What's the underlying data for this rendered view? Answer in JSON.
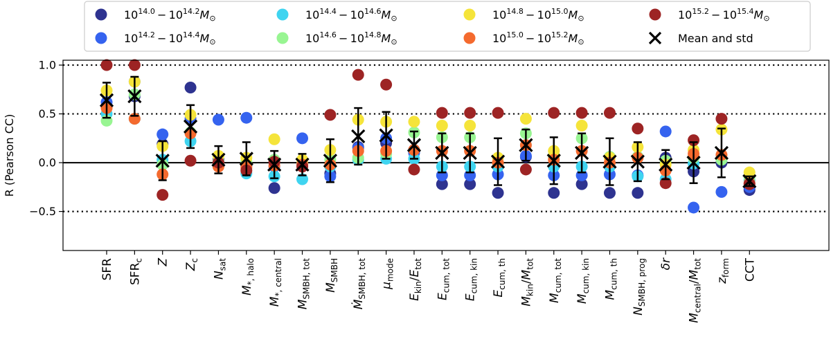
{
  "chart_data": {
    "type": "scatter",
    "ylabel": "R (Pearson CC)",
    "ylim": [
      -0.9,
      1.05
    ],
    "yticks": [
      "−0.5",
      "0.0",
      "0.5",
      "1.0"
    ],
    "ytick_values": [
      -0.5,
      0.0,
      0.5,
      1.0
    ],
    "reference_lines": {
      "dotted": [
        -0.5,
        0.5,
        1.0
      ],
      "solid": [
        0.0
      ]
    },
    "categories": [
      {
        "id": "SFR",
        "base": "SFR",
        "sub": ""
      },
      {
        "id": "SFR_c",
        "base": "SFR",
        "sub": "c"
      },
      {
        "id": "Z",
        "base": "Z",
        "sub": ""
      },
      {
        "id": "Z_c",
        "base": "Z",
        "sub": "c"
      },
      {
        "id": "N_sat",
        "base": "N",
        "sub": "sat"
      },
      {
        "id": "M_star_halo",
        "base": "M",
        "sub": "*, halo"
      },
      {
        "id": "M_star_central",
        "base": "M",
        "sub": "*, central"
      },
      {
        "id": "M_SMBH_tot",
        "base": "M",
        "sub": "SMBH, tot"
      },
      {
        "id": "M_SMBH",
        "base": "M",
        "sub": "SMBH"
      },
      {
        "id": "Mdot_SMBH_tot",
        "base": "Ṁ",
        "sub": "SMBH, tot"
      },
      {
        "id": "mu_mode",
        "base": "μ",
        "sub": "mode"
      },
      {
        "id": "E_kin_E_tot",
        "base": "E",
        "sub": "kin",
        "frac": {
          "base": "E",
          "sub": "tot"
        }
      },
      {
        "id": "E_cum_tot",
        "base": "E",
        "sub": "cum, tot"
      },
      {
        "id": "E_cum_kin",
        "base": "E",
        "sub": "cum, kin"
      },
      {
        "id": "E_cum_th",
        "base": "E",
        "sub": "cum, th"
      },
      {
        "id": "M_kin_M_tot",
        "base": "M",
        "sub": "kin",
        "frac": {
          "base": "M",
          "sub": "tot"
        }
      },
      {
        "id": "M_cum_tot",
        "base": "M",
        "sub": "cum, tot"
      },
      {
        "id": "M_cum_kin",
        "base": "M",
        "sub": "cum, kin"
      },
      {
        "id": "M_cum_th",
        "base": "M",
        "sub": "cum, th"
      },
      {
        "id": "N_SMBH_prog",
        "base": "N",
        "sub": "SMBH, prog"
      },
      {
        "id": "delta_r",
        "base": "δr",
        "sub": ""
      },
      {
        "id": "M_central_M_tot",
        "base": "M",
        "sub": "central",
        "frac": {
          "base": "M",
          "sub": "tot"
        }
      },
      {
        "id": "z_form",
        "base": "z",
        "sub": "form"
      },
      {
        "id": "CCT",
        "base": "CCT",
        "sub": ""
      }
    ],
    "series": [
      {
        "name": "10^{14.0} - 10^{14.2} M_sun",
        "sup_lo": "14.0",
        "sup_hi": "14.2",
        "color": "#2e3390",
        "values": [
          0.58,
          0.68,
          0.19,
          0.77,
          0.03,
          -0.03,
          -0.26,
          -0.01,
          -0.11,
          0.16,
          0.2,
          0.13,
          -0.22,
          -0.22,
          -0.31,
          0.06,
          -0.31,
          -0.22,
          -0.31,
          -0.31,
          0.05,
          -0.09,
          0.0,
          -0.28
        ]
      },
      {
        "name": "10^{14.2} - 10^{14.4} M_sun",
        "sup_lo": "14.2",
        "sup_hi": "14.4",
        "color": "#3563ef",
        "values": [
          0.62,
          0.83,
          0.29,
          0.45,
          0.44,
          0.46,
          -0.04,
          0.25,
          -0.14,
          0.15,
          0.25,
          0.1,
          -0.13,
          -0.13,
          -0.12,
          0.07,
          -0.13,
          -0.13,
          -0.12,
          -0.13,
          0.32,
          -0.46,
          -0.3,
          -0.25
        ]
      },
      {
        "name": "10^{14.4} - 10^{14.6} M_sun",
        "sup_lo": "14.4",
        "sup_hi": "14.6",
        "color": "#3fd4f0",
        "values": [
          0.5,
          0.45,
          0.03,
          0.22,
          0.0,
          -0.11,
          -0.14,
          -0.17,
          -0.04,
          0.03,
          0.04,
          0.04,
          -0.04,
          -0.04,
          -0.04,
          0.18,
          -0.04,
          -0.04,
          -0.04,
          -0.14,
          -0.17,
          -0.01,
          0.05,
          -0.18
        ]
      },
      {
        "name": "10^{14.6} - 10^{14.8} M_sun",
        "sup_lo": "14.6",
        "sup_hi": "14.8",
        "color": "#98f592",
        "values": [
          0.43,
          0.7,
          -0.02,
          0.31,
          0.01,
          0.01,
          0.03,
          -0.01,
          0.03,
          0.05,
          0.09,
          0.31,
          0.26,
          0.26,
          0.0,
          0.3,
          0.06,
          0.25,
          0.06,
          0.06,
          0.02,
          0.05,
          0.03,
          -0.15
        ]
      },
      {
        "name": "10^{14.8} - 10^{15.0} M_sun",
        "sup_lo": "14.8",
        "sup_hi": "15.0",
        "color": "#f5e43a",
        "values": [
          0.74,
          0.83,
          0.17,
          0.49,
          0.07,
          0.05,
          0.24,
          0.03,
          0.13,
          0.44,
          0.42,
          0.42,
          0.38,
          0.38,
          0.05,
          0.45,
          0.12,
          0.38,
          0.05,
          0.16,
          -0.02,
          0.13,
          0.34,
          -0.1
        ]
      },
      {
        "name": "10^{15.0} - 10^{15.2} M_sun",
        "sup_lo": "15.0",
        "sup_hi": "15.2",
        "color": "#f46a2e",
        "values": [
          0.56,
          0.45,
          -0.12,
          0.3,
          -0.04,
          -0.05,
          -0.03,
          -0.02,
          -0.02,
          0.12,
          0.12,
          0.13,
          0.12,
          0.12,
          0.0,
          0.18,
          0.03,
          0.12,
          0.0,
          0.05,
          -0.08,
          0.09,
          0.08,
          -0.21
        ]
      },
      {
        "name": "10^{15.2} - 10^{15.4} M_sun",
        "sup_lo": "15.2",
        "sup_hi": "15.4",
        "color": "#9d2424",
        "values": [
          1.0,
          1.0,
          -0.33,
          0.02,
          0.0,
          -0.08,
          0.01,
          -0.04,
          0.49,
          0.9,
          0.8,
          -0.07,
          0.51,
          0.51,
          0.51,
          -0.07,
          0.51,
          0.51,
          0.51,
          0.35,
          -0.21,
          0.23,
          0.45,
          -0.22
        ]
      }
    ],
    "mean_std": {
      "name": "Mean and std",
      "mean": [
        0.64,
        0.68,
        0.02,
        0.37,
        0.03,
        0.04,
        -0.02,
        -0.02,
        0.02,
        0.27,
        0.28,
        0.18,
        0.1,
        0.1,
        0.01,
        0.18,
        0.02,
        0.1,
        0.01,
        0.01,
        -0.02,
        0.0,
        0.1,
        -0.19
      ],
      "std": [
        0.18,
        0.2,
        0.2,
        0.22,
        0.14,
        0.17,
        0.14,
        0.11,
        0.22,
        0.29,
        0.24,
        0.14,
        0.2,
        0.2,
        0.24,
        0.16,
        0.24,
        0.2,
        0.24,
        0.2,
        0.15,
        0.21,
        0.25,
        0.05
      ]
    },
    "legend": {
      "placement": "top",
      "columns": 4,
      "mean_label": "Mean and std"
    }
  }
}
